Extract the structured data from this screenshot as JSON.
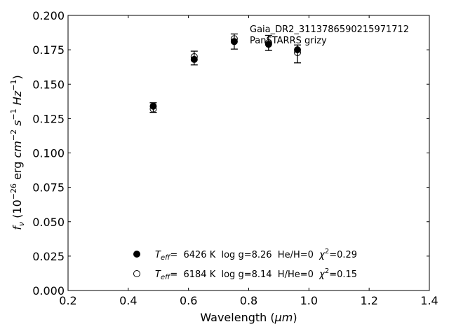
{
  "chart_data": {
    "type": "scatter",
    "annotation": {
      "line1": "Gaia_DR2_3113786590215971712",
      "line2": "PanSTARRS grizy"
    },
    "xlabel": "Wavelength (",
    "xlabel_unit": "μm",
    "xlabel_close": ")",
    "ylabel_prefix": "f",
    "ylabel_sub": "ν",
    "ylabel_rest_a": " (10",
    "ylabel_exp_a": "−26",
    "ylabel_rest_b": " erg ",
    "ylabel_cm": "cm",
    "ylabel_exp_b": "−2",
    "ylabel_s": " s",
    "ylabel_exp_c": "−1",
    "ylabel_hz": " Hz",
    "ylabel_exp_d": "−1",
    "ylabel_close": ")",
    "xlim": [
      0.2,
      1.4
    ],
    "ylim": [
      0.0,
      0.2
    ],
    "xticks": [
      0.2,
      0.4,
      0.6,
      0.8,
      1.0,
      1.2,
      1.4
    ],
    "xtick_labels": [
      "0.2",
      "0.4",
      "0.6",
      "0.8",
      "1.0",
      "1.2",
      "1.4"
    ],
    "yticks": [
      0.0,
      0.025,
      0.05,
      0.075,
      0.1,
      0.125,
      0.15,
      0.175,
      0.2
    ],
    "ytick_labels": [
      "0.000",
      "0.025",
      "0.050",
      "0.075",
      "0.100",
      "0.125",
      "0.150",
      "0.175",
      "0.200"
    ],
    "grid": false,
    "legend_position": "lower-center",
    "observed": {
      "x": [
        0.483,
        0.619,
        0.752,
        0.866,
        0.962
      ],
      "y": [
        0.133,
        0.169,
        0.181,
        0.18,
        0.172
      ],
      "yerr": [
        0.0035,
        0.005,
        0.0055,
        0.0055,
        0.0065
      ]
    },
    "series": [
      {
        "marker": "filled-circle",
        "legend_a": "T",
        "legend_sub": "eff",
        "legend_b": "=  6426 K  log g=8.26  He/H=0  ",
        "legend_chi": "χ",
        "legend_exp": "2",
        "legend_c": "=0.29",
        "x": [
          0.483,
          0.619,
          0.752,
          0.866,
          0.962
        ],
        "y": [
          0.134,
          0.168,
          0.181,
          0.179,
          0.175
        ]
      },
      {
        "marker": "open-circle",
        "legend_a": "T",
        "legend_sub": "eff",
        "legend_b": "=  6184 K  log g=8.14  H/He=0  ",
        "legend_chi": "χ",
        "legend_exp": "2",
        "legend_c": "=0.15",
        "x": [
          0.483,
          0.619,
          0.752,
          0.866,
          0.962
        ],
        "y": [
          0.132,
          0.17,
          0.183,
          0.18,
          0.173
        ]
      }
    ]
  }
}
